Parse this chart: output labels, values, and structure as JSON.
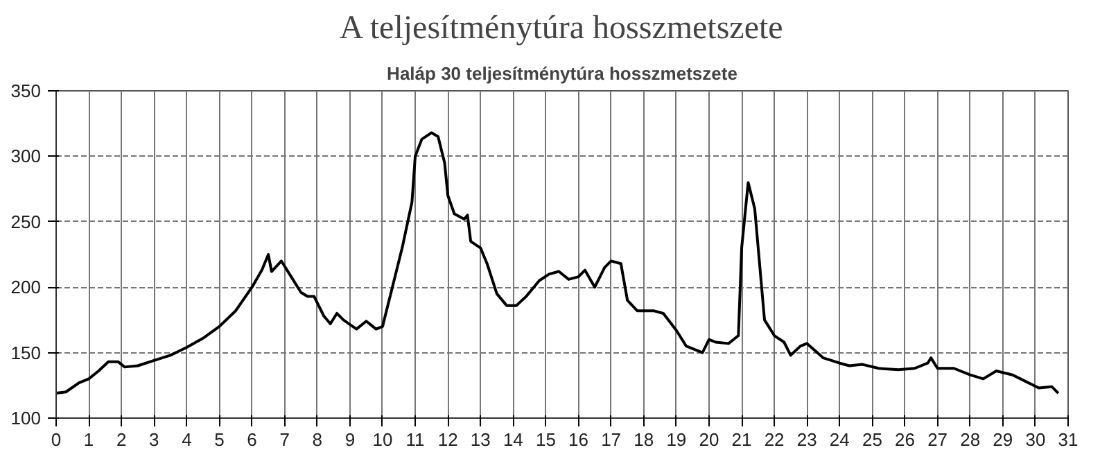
{
  "chart_data": {
    "type": "line",
    "title": "A teljesítménytúra hosszmetszete",
    "subtitle": "Haláp 30 teljesítménytúra hosszmetszete",
    "x": [
      0,
      0.3,
      0.7,
      1,
      1.3,
      1.6,
      1.9,
      2.1,
      2.5,
      3,
      3.5,
      4,
      4.5,
      5,
      5.5,
      6,
      6.3,
      6.5,
      6.6,
      6.9,
      7.2,
      7.5,
      7.7,
      7.9,
      8.2,
      8.4,
      8.6,
      8.8,
      9.2,
      9.5,
      9.8,
      10,
      10.3,
      10.6,
      10.9,
      11,
      11.2,
      11.5,
      11.7,
      11.9,
      12,
      12.2,
      12.5,
      12.6,
      12.7,
      13,
      13.2,
      13.5,
      13.8,
      14.1,
      14.4,
      14.8,
      15.1,
      15.4,
      15.7,
      16,
      16.2,
      16.5,
      16.8,
      17,
      17.3,
      17.5,
      17.8,
      18.3,
      18.6,
      19,
      19.3,
      19.8,
      20,
      20.2,
      20.6,
      20.9,
      21,
      21.2,
      21.4,
      21.7,
      22,
      22.3,
      22.5,
      22.8,
      23,
      23.5,
      24,
      24.3,
      24.7,
      25.2,
      25.8,
      26.3,
      26.7,
      26.8,
      27,
      27.5,
      28,
      28.4,
      28.8,
      29.3,
      29.7,
      30.1,
      30.5,
      30.7
    ],
    "series": [
      {
        "color": "#000000",
        "values": [
          119,
          120,
          127,
          130,
          136,
          143,
          143,
          139,
          140,
          144,
          148,
          154,
          161,
          170,
          182,
          200,
          213,
          225,
          212,
          220,
          208,
          196,
          193,
          193,
          178,
          172,
          180,
          175,
          168,
          174,
          168,
          170,
          200,
          230,
          265,
          300,
          313,
          318,
          315,
          295,
          270,
          256,
          252,
          255,
          235,
          230,
          218,
          195,
          186,
          186,
          193,
          205,
          210,
          212,
          206,
          208,
          213,
          200,
          215,
          220,
          218,
          190,
          182,
          182,
          180,
          167,
          155,
          150,
          160,
          158,
          157,
          163,
          230,
          280,
          260,
          175,
          163,
          158,
          148,
          155,
          157,
          146,
          142,
          140,
          141,
          138,
          137,
          138,
          142,
          146,
          138,
          138,
          133,
          130,
          136,
          133,
          128,
          123,
          124,
          119
        ]
      }
    ],
    "xlim": [
      0,
      31
    ],
    "xticks": [
      0,
      1,
      2,
      3,
      4,
      5,
      6,
      7,
      8,
      9,
      10,
      11,
      12,
      13,
      14,
      15,
      16,
      17,
      18,
      19,
      20,
      21,
      22,
      23,
      24,
      25,
      26,
      27,
      28,
      29,
      30,
      31
    ],
    "ylim": [
      100,
      350
    ],
    "yticks": [
      100,
      150,
      200,
      250,
      300,
      350
    ],
    "grid": true,
    "marker": "none",
    "line_style": "solid"
  }
}
